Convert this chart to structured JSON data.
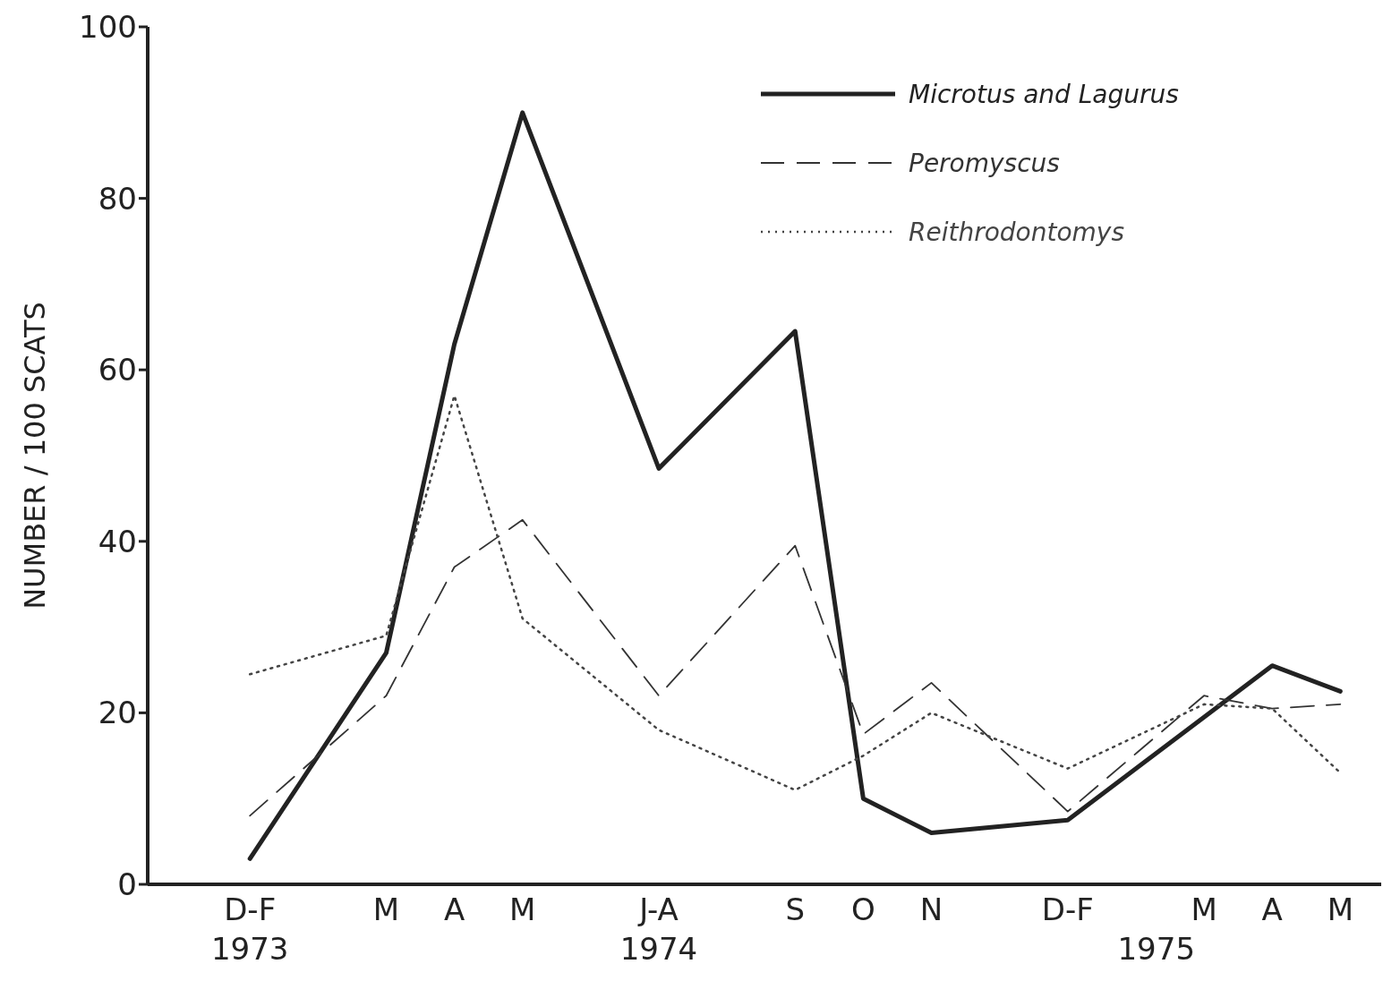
{
  "chart_data": {
    "type": "line",
    "ylabel": "NUMBER / 100  SCATS",
    "categories": [
      "D-F",
      null,
      "M",
      "A",
      "M",
      null,
      "J-A",
      null,
      "S",
      "O",
      "N",
      null,
      "D-F",
      null,
      "M",
      "A",
      "M"
    ],
    "annotations": [
      "1973",
      "1974",
      "1975"
    ],
    "ylim": [
      0,
      100
    ],
    "yticks": [
      0,
      20,
      40,
      60,
      80,
      100
    ],
    "grid": false,
    "legend": "top right",
    "marker": "none",
    "series": [
      {
        "name": "Microtus and Lagurus",
        "color": "#222222",
        "line_style": "solid",
        "values": [
          3,
          null,
          27,
          63,
          90,
          null,
          48.5,
          null,
          64.5,
          10,
          6,
          null,
          7.5,
          null,
          19.5,
          25.5,
          22.5
        ]
      },
      {
        "name": "Peromyscus",
        "color": "#333333",
        "line_style": "dashed",
        "values": [
          8,
          null,
          22,
          37,
          42.5,
          null,
          22,
          null,
          39.5,
          17.5,
          23.5,
          null,
          8.5,
          null,
          22,
          20.5,
          21
        ]
      },
      {
        "name": "Reithrodontomys",
        "color": "#444444",
        "line_style": "dotted",
        "values": [
          24.5,
          null,
          29,
          57,
          31,
          null,
          18,
          null,
          11,
          15,
          20,
          null,
          13.5,
          null,
          21,
          20.5,
          13
        ]
      }
    ]
  }
}
